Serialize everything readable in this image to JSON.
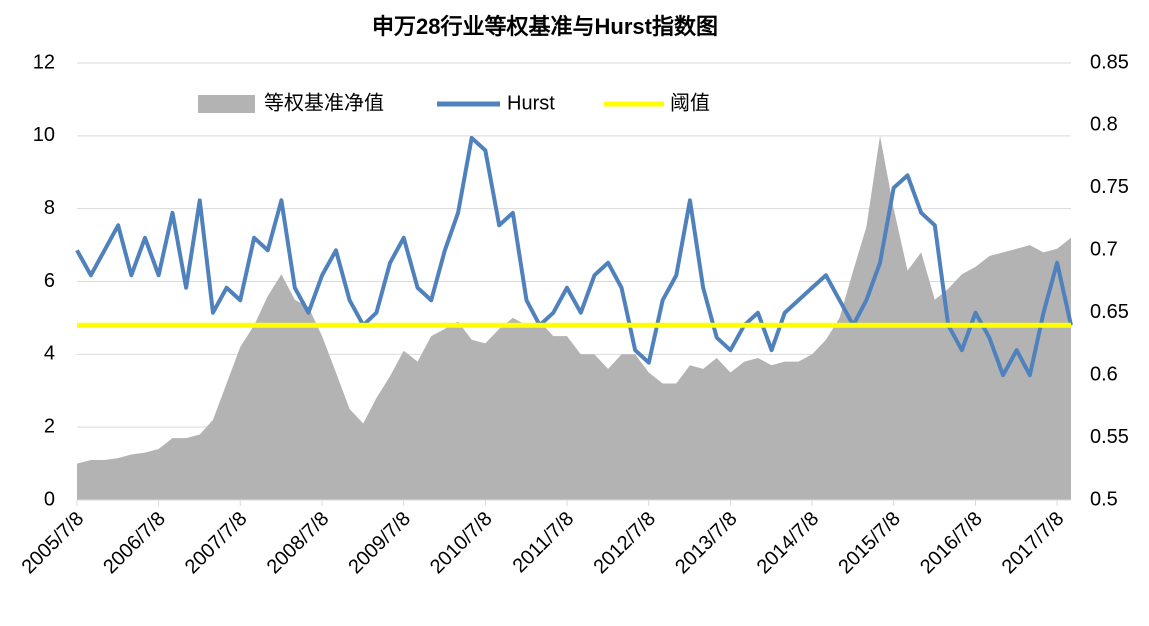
{
  "chart_data": {
    "type": "area-line",
    "title": "申万28行业等权基准与Hurst指数图",
    "x": [
      "2005/7/8",
      "2005/9/8",
      "2005/11/8",
      "2006/1/8",
      "2006/3/8",
      "2006/5/8",
      "2006/7/8",
      "2006/9/8",
      "2006/11/8",
      "2007/1/8",
      "2007/3/8",
      "2007/5/8",
      "2007/7/8",
      "2007/9/8",
      "2007/11/8",
      "2008/1/8",
      "2008/3/8",
      "2008/5/8",
      "2008/7/8",
      "2008/9/8",
      "2008/11/8",
      "2009/1/8",
      "2009/3/8",
      "2009/5/8",
      "2009/7/8",
      "2009/9/8",
      "2009/11/8",
      "2010/1/8",
      "2010/3/8",
      "2010/5/8",
      "2010/7/8",
      "2010/9/8",
      "2010/11/8",
      "2011/1/8",
      "2011/3/8",
      "2011/5/8",
      "2011/7/8",
      "2011/9/8",
      "2011/11/8",
      "2012/1/8",
      "2012/3/8",
      "2012/5/8",
      "2012/7/8",
      "2012/9/8",
      "2012/11/8",
      "2013/1/8",
      "2013/3/8",
      "2013/5/8",
      "2013/7/8",
      "2013/9/8",
      "2013/11/8",
      "2014/1/8",
      "2014/3/8",
      "2014/5/8",
      "2014/7/8",
      "2014/9/8",
      "2014/11/8",
      "2015/1/8",
      "2015/3/8",
      "2015/5/8",
      "2015/7/8",
      "2015/9/8",
      "2015/11/8",
      "2016/1/8",
      "2016/3/8",
      "2016/5/8",
      "2016/7/8",
      "2016/9/8",
      "2016/11/8",
      "2017/1/8",
      "2017/3/8",
      "2017/5/8",
      "2017/7/8",
      "2017/9/8"
    ],
    "series": [
      {
        "name": "等权基准净值",
        "kind": "area",
        "color": "#b3b3b3",
        "axis": "y",
        "values": [
          1.0,
          1.1,
          1.1,
          1.15,
          1.25,
          1.3,
          1.4,
          1.7,
          1.7,
          1.8,
          2.2,
          3.2,
          4.2,
          4.8,
          5.6,
          6.2,
          5.5,
          5.3,
          4.5,
          3.5,
          2.5,
          2.1,
          2.8,
          3.4,
          4.1,
          3.8,
          4.5,
          4.7,
          4.9,
          4.4,
          4.3,
          4.7,
          5.0,
          4.8,
          4.9,
          4.5,
          4.5,
          4.0,
          4.0,
          3.6,
          4.0,
          4.0,
          3.5,
          3.2,
          3.2,
          3.7,
          3.6,
          3.9,
          3.5,
          3.8,
          3.9,
          3.7,
          3.8,
          3.8,
          4.0,
          4.4,
          5.0,
          6.3,
          7.5,
          10.0,
          8.0,
          6.3,
          6.8,
          5.5,
          5.8,
          6.2,
          6.4,
          6.7,
          6.8,
          6.9,
          7.0,
          6.8,
          6.9,
          7.2
        ]
      },
      {
        "name": "Hurst",
        "kind": "line",
        "color": "#4f81bd",
        "axis": "y2",
        "values": [
          0.7,
          0.68,
          0.7,
          0.72,
          0.68,
          0.71,
          0.68,
          0.73,
          0.67,
          0.74,
          0.65,
          0.67,
          0.66,
          0.71,
          0.7,
          0.74,
          0.67,
          0.65,
          0.68,
          0.7,
          0.66,
          0.64,
          0.65,
          0.69,
          0.71,
          0.67,
          0.66,
          0.7,
          0.73,
          0.79,
          0.78,
          0.72,
          0.73,
          0.66,
          0.64,
          0.65,
          0.67,
          0.65,
          0.68,
          0.69,
          0.67,
          0.62,
          0.61,
          0.66,
          0.68,
          0.74,
          0.67,
          0.63,
          0.62,
          0.64,
          0.65,
          0.62,
          0.65,
          0.66,
          0.67,
          0.68,
          0.66,
          0.64,
          0.66,
          0.69,
          0.75,
          0.76,
          0.73,
          0.72,
          0.64,
          0.62,
          0.65,
          0.63,
          0.6,
          0.62,
          0.6,
          0.65,
          0.69,
          0.64
        ]
      }
    ],
    "threshold": {
      "name": "阈值",
      "color": "#ffff00",
      "value": 0.64,
      "axis": "y2"
    },
    "xlim": [
      "2005/7/8",
      "2017/9/8"
    ],
    "xticks": [
      "2005/7/8",
      "2006/7/8",
      "2007/7/8",
      "2008/7/8",
      "2009/7/8",
      "2010/7/8",
      "2011/7/8",
      "2012/7/8",
      "2013/7/8",
      "2014/7/8",
      "2015/7/8",
      "2016/7/8",
      "2017/7/8"
    ],
    "ylim": [
      0,
      12
    ],
    "yticks": [
      0,
      2,
      4,
      6,
      8,
      10,
      12
    ],
    "y2lim": [
      0.5,
      0.85
    ],
    "y2ticks": [
      0.5,
      0.55,
      0.6,
      0.65,
      0.7,
      0.75,
      0.8,
      0.85
    ],
    "grid": true,
    "legend": "top"
  }
}
